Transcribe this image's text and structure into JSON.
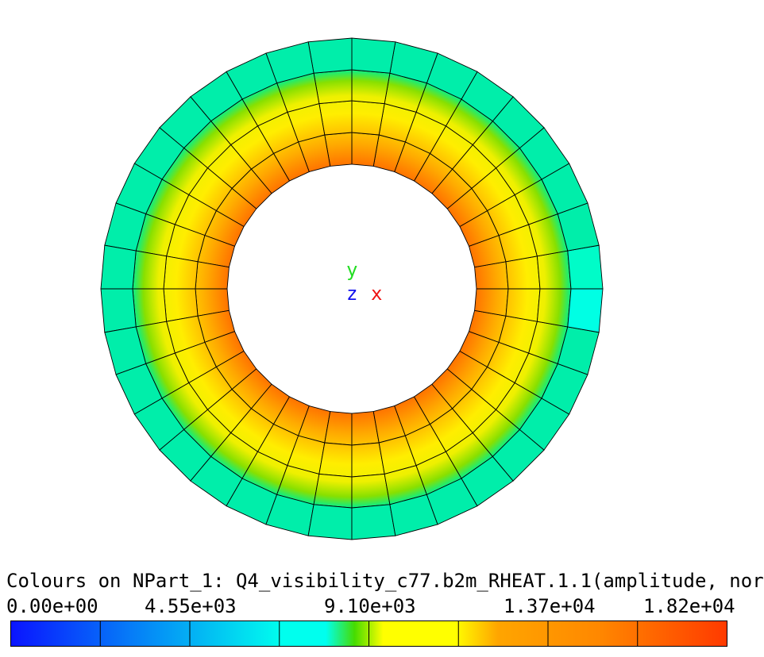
{
  "axes": {
    "y": "y",
    "z": "z",
    "x": "x"
  },
  "axes_colors": {
    "y": "#22dd22",
    "z": "#1111ee",
    "x": "#ee1111"
  },
  "legend": {
    "title": "Colours on NPart_1: Q4_visibility_c77.b2m_RHEAT.1.1(amplitude, nor",
    "ticks": [
      "0.00e+00",
      "4.55e+03",
      "9.10e+03",
      "1.37e+04",
      "1.82e+04"
    ]
  },
  "chart_data": {
    "type": "heatmap",
    "title": "Colours on NPart_1: Q4_visibility_c77.b2m_RHEAT.1.1(amplitude, nor",
    "range": [
      0,
      18200
    ],
    "colorbar_ticks": [
      0,
      4550,
      9100,
      13700,
      18200
    ],
    "colorbar_segments": 8,
    "mesh": {
      "shape": "annulus",
      "circumferential_elements": 36,
      "radial_elements": 4
    },
    "radial_values": [
      16500,
      12500,
      10800,
      7600
    ],
    "colors": {
      "blue": "#0a14ff",
      "cyan": "#00ffee",
      "green": "#46dc00",
      "yellow": "#ffff00",
      "orange": "#ffa500",
      "red": "#ff3a00"
    }
  }
}
